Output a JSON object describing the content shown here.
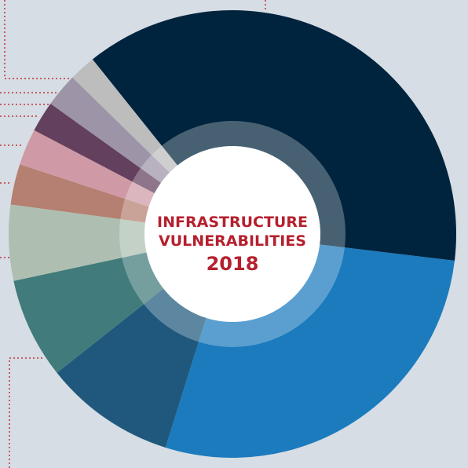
{
  "chart_data": {
    "type": "pie",
    "donut": true,
    "center_label": {
      "line1": "INFRASTRUCTURE",
      "line2": "VULNERABILITIES",
      "line3": "2018"
    },
    "slices": [
      {
        "value": 37.2,
        "color": "#00243e"
      },
      {
        "value": 27.6,
        "color": "#1b7bbd"
      },
      {
        "value": 9.4,
        "color": "#1f587c"
      },
      {
        "value": 7.2,
        "color": "#417b7b"
      },
      {
        "value": 5.4,
        "color": "#aebfb1"
      },
      {
        "value": 2.9,
        "color": "#b57f71"
      },
      {
        "value": 2.6,
        "color": "#cf9aa6"
      },
      {
        "value": 2.2,
        "color": "#63405d"
      },
      {
        "value": 2.4,
        "color": "#9d94a8"
      },
      {
        "value": 1.9,
        "color": "#bcbdbc"
      }
    ],
    "start_angle_deg": -128.7,
    "legend": "none"
  },
  "colors": {
    "background": "#d6dde4",
    "center_fill": "#ffffff",
    "center_ring": "#ffffff",
    "leader_lines": "#c2333c",
    "center_text": "#b5202e"
  }
}
